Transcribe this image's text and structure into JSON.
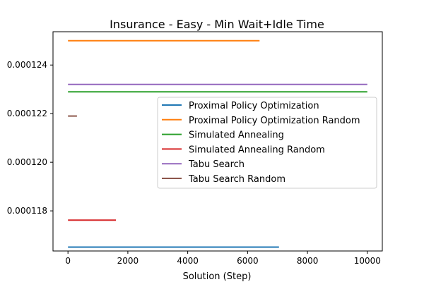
{
  "chart_data": {
    "type": "line",
    "title": "Insurance - Easy - Min Wait+Idle Time",
    "xlabel": "Solution (Step)",
    "ylabel": "",
    "xlim": [
      -500,
      10500
    ],
    "ylim": [
      0.00011635,
      0.00012537
    ],
    "x_ticks": [
      0,
      2000,
      4000,
      6000,
      8000,
      10000
    ],
    "x_tick_labels": [
      "0",
      "2000",
      "4000",
      "6000",
      "8000",
      "10000"
    ],
    "y_ticks": [
      0.000118,
      0.00012,
      0.000122,
      0.000124
    ],
    "y_tick_labels": [
      "0.000118",
      "0.000120",
      "0.000122",
      "0.000124"
    ],
    "legend_position": "center-right",
    "grid": false,
    "series": [
      {
        "name": "Proximal Policy Optimization",
        "color": "#1f77b4",
        "x": [
          0,
          7050
        ],
        "y": [
          0.00011651,
          0.00011651
        ]
      },
      {
        "name": "Proximal Policy Optimization Random",
        "color": "#ff7f0e",
        "x": [
          0,
          6400
        ],
        "y": [
          0.000125,
          0.000125
        ]
      },
      {
        "name": "Simulated Annealing",
        "color": "#2ca02c",
        "x": [
          0,
          10000
        ],
        "y": [
          0.0001229,
          0.0001229
        ]
      },
      {
        "name": "Simulated Annealing Random",
        "color": "#d62728",
        "x": [
          0,
          1600
        ],
        "y": [
          0.00011762,
          0.00011762
        ]
      },
      {
        "name": "Tabu Search",
        "color": "#9467bd",
        "x": [
          0,
          10000
        ],
        "y": [
          0.0001232,
          0.0001232
        ]
      },
      {
        "name": "Tabu Search Random",
        "color": "#8c564b",
        "x": [
          0,
          300
        ],
        "y": [
          0.0001219,
          0.0001219
        ]
      }
    ]
  }
}
